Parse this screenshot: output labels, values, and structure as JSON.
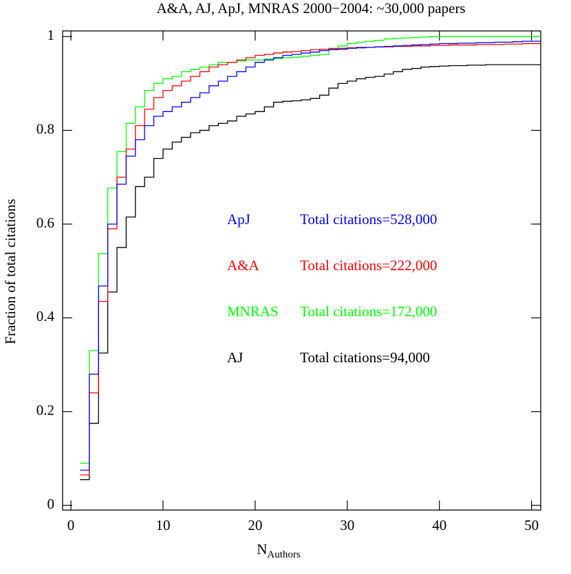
{
  "chart_data": {
    "type": "step",
    "title": "A&A, AJ, ApJ, MNRAS 2000−2004: ~30,000 papers",
    "xlabel": "N",
    "xlabel_sub": "Authors",
    "ylabel": "Fraction of total citations",
    "xlim": [
      -0.9,
      51
    ],
    "ylim": [
      -0.01,
      1.012
    ],
    "xticks": [
      0,
      10,
      20,
      30,
      40,
      50
    ],
    "yticks": [
      0,
      0.2,
      0.4,
      0.6,
      0.8,
      1
    ],
    "x": [
      1,
      2,
      3,
      4,
      5,
      6,
      7,
      8,
      9,
      10,
      11,
      12,
      13,
      14,
      15,
      16,
      17,
      18,
      19,
      20,
      21,
      22,
      23,
      24,
      25,
      26,
      27,
      28,
      29,
      30,
      31,
      32,
      33,
      34,
      35,
      36,
      37,
      38,
      39,
      40,
      41,
      42,
      43,
      44,
      45,
      46,
      47,
      48,
      49,
      50
    ],
    "series": [
      {
        "name": "ApJ",
        "label": "Total citations=528,000",
        "color": "#0000ff",
        "values": [
          0.075,
          0.28,
          0.468,
          0.6,
          0.685,
          0.745,
          0.78,
          0.81,
          0.83,
          0.84,
          0.85,
          0.86,
          0.87,
          0.88,
          0.895,
          0.905,
          0.915,
          0.925,
          0.935,
          0.945,
          0.95,
          0.955,
          0.96,
          0.962,
          0.965,
          0.967,
          0.97,
          0.972,
          0.973,
          0.975,
          0.976,
          0.977,
          0.978,
          0.979,
          0.98,
          0.981,
          0.982,
          0.983,
          0.984,
          0.985,
          0.985,
          0.986,
          0.986,
          0.987,
          0.987,
          0.988,
          0.988,
          0.989,
          0.99,
          0.99
        ]
      },
      {
        "name": "A&A",
        "label": "Total citations=222,000",
        "color": "#ff0000",
        "values": [
          0.065,
          0.24,
          0.435,
          0.59,
          0.7,
          0.76,
          0.81,
          0.845,
          0.87,
          0.885,
          0.895,
          0.905,
          0.915,
          0.925,
          0.935,
          0.94,
          0.945,
          0.95,
          0.955,
          0.96,
          0.962,
          0.965,
          0.967,
          0.968,
          0.97,
          0.972,
          0.973,
          0.974,
          0.975,
          0.976,
          0.977,
          0.977,
          0.978,
          0.978,
          0.979,
          0.979,
          0.98,
          0.98,
          0.981,
          0.981,
          0.982,
          0.982,
          0.982,
          0.983,
          0.983,
          0.983,
          0.984,
          0.984,
          0.985,
          0.985
        ]
      },
      {
        "name": "MNRAS",
        "label": "Total citations=172,000",
        "color": "#00ff00",
        "values": [
          0.09,
          0.33,
          0.537,
          0.677,
          0.755,
          0.815,
          0.85,
          0.885,
          0.9,
          0.91,
          0.915,
          0.925,
          0.93,
          0.935,
          0.94,
          0.945,
          0.945,
          0.948,
          0.95,
          0.95,
          0.952,
          0.953,
          0.955,
          0.956,
          0.958,
          0.96,
          0.962,
          0.975,
          0.98,
          0.985,
          0.988,
          0.99,
          0.992,
          0.995,
          0.996,
          0.997,
          0.998,
          0.999,
          1,
          1,
          1,
          1,
          1,
          1,
          1,
          1,
          1,
          1,
          1,
          1
        ]
      },
      {
        "name": "AJ",
        "label": "Total citations=94,000",
        "color": "#000000",
        "values": [
          0.055,
          0.175,
          0.325,
          0.455,
          0.55,
          0.615,
          0.68,
          0.7,
          0.74,
          0.76,
          0.775,
          0.785,
          0.795,
          0.8,
          0.81,
          0.815,
          0.82,
          0.83,
          0.835,
          0.84,
          0.85,
          0.86,
          0.862,
          0.863,
          0.865,
          0.868,
          0.875,
          0.89,
          0.9,
          0.905,
          0.91,
          0.913,
          0.915,
          0.92,
          0.925,
          0.93,
          0.932,
          0.935,
          0.936,
          0.937,
          0.938,
          0.938,
          0.939,
          0.939,
          0.94,
          0.94,
          0.94,
          0.94,
          0.94,
          0.94
        ]
      }
    ]
  }
}
